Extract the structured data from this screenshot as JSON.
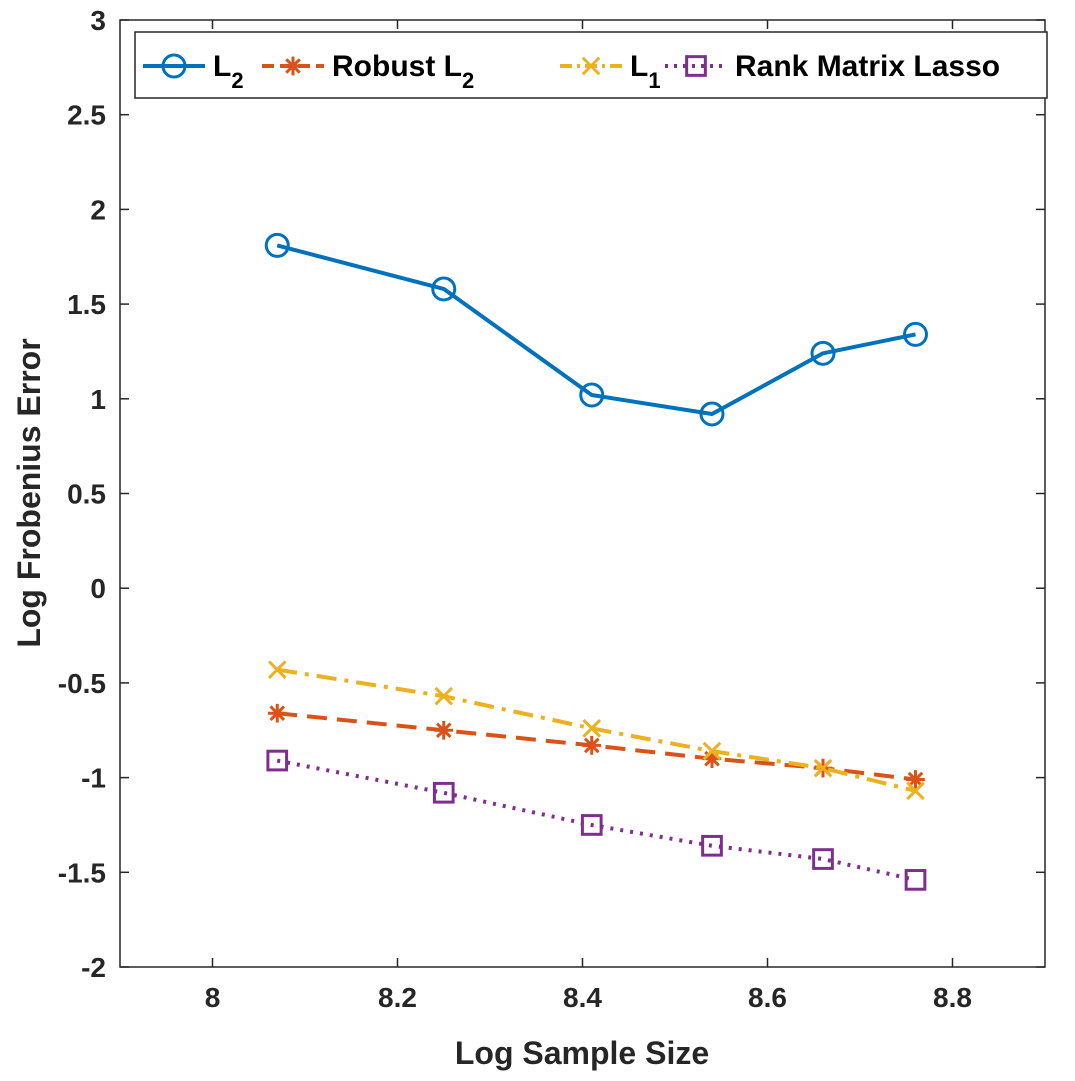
{
  "chart_data": {
    "type": "line",
    "xlabel": "Log Sample Size",
    "ylabel": "Log Frobenius Error",
    "xlim": [
      7.9,
      8.9
    ],
    "ylim": [
      -2,
      3
    ],
    "xticks": [
      "8",
      "8.2",
      "8.4",
      "8.6",
      "8.8"
    ],
    "xtick_values": [
      8,
      8.2,
      8.4,
      8.6,
      8.8
    ],
    "yticks": [
      "-2",
      "-1.5",
      "-1",
      "-0.5",
      "0",
      "0.5",
      "1",
      "1.5",
      "2",
      "2.5",
      "3"
    ],
    "ytick_values": [
      -2,
      -1.5,
      -1,
      -0.5,
      0,
      0.5,
      1,
      1.5,
      2,
      2.5,
      3
    ],
    "grid": false,
    "legend_position": "top",
    "legend_orientation": "horizontal",
    "x": [
      8.07,
      8.25,
      8.41,
      8.54,
      8.66,
      8.76
    ],
    "series": [
      {
        "name_main": "L",
        "name_sub": "2",
        "color": "#0072BD",
        "line": "solid",
        "marker": "circle",
        "values": [
          1.81,
          1.58,
          1.02,
          0.92,
          1.24,
          1.34
        ]
      },
      {
        "name_main": "Robust L",
        "name_sub": "2",
        "color": "#D95319",
        "line": "dashed",
        "marker": "asterisk",
        "values": [
          -0.66,
          -0.75,
          -0.83,
          -0.9,
          -0.95,
          -1.01
        ]
      },
      {
        "name_main": "L",
        "name_sub": "1",
        "color": "#EDB120",
        "line": "dashdot",
        "marker": "x",
        "values": [
          -0.43,
          -0.57,
          -0.74,
          -0.86,
          -0.95,
          -1.07
        ]
      },
      {
        "name_main": "Rank Matrix Lasso",
        "name_sub": "",
        "color": "#7E2F8E",
        "line": "dotted",
        "marker": "square",
        "values": [
          -0.91,
          -1.08,
          -1.25,
          -1.36,
          -1.43,
          -1.54
        ]
      }
    ]
  }
}
